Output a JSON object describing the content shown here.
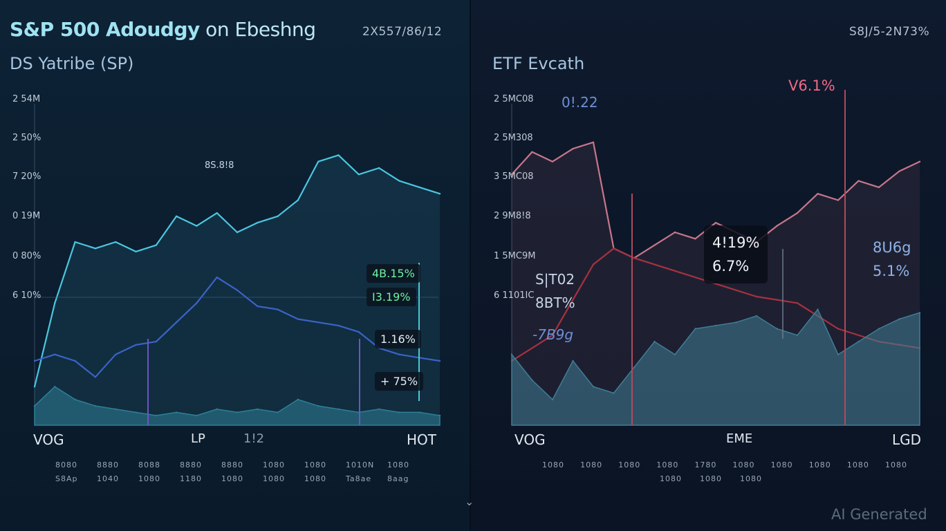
{
  "header": {
    "left_title": "S&P 500 Adoudgy on Ebeshng",
    "left_title_strong": "S&P 500 Adoudgy",
    "left_title_rest": " on Ebeshng",
    "left_corner": "2X557/86/12",
    "left_subtitle": "DS Yatribe (SP)",
    "right_corner": "S8J/5-2N73%",
    "right_subtitle": "ETF Evcath"
  },
  "watermark": "AI Generated",
  "chart_data": [
    {
      "type": "line",
      "panel": "left",
      "title": "S&P 500 Adoudgy on Ebeshng",
      "subtitle": "DS Yatribe (SP)",
      "y_tick_labels": [
        "2 54M",
        "2 50%",
        "7 20%",
        "0 19M",
        "0 80%",
        "6 10%"
      ],
      "x_labels": {
        "left": "VOG",
        "center": "LP",
        "center2": "1!2",
        "right": "HOT"
      },
      "x_small_rows": [
        [
          "8080",
          "8880",
          "8088",
          "8880",
          "8880",
          "1080",
          "1080",
          "1010N",
          "1080"
        ],
        [
          "S8Ap",
          "1040",
          "1080",
          "1180",
          "1080",
          "1080",
          "1080",
          "Ta8ae",
          "8aag"
        ]
      ],
      "grid": false,
      "series": [
        {
          "color": "#4cc6e0",
          "x": [
            0,
            5,
            10,
            15,
            20,
            25,
            30,
            35,
            40,
            45,
            50,
            55,
            60,
            65,
            70,
            75,
            80,
            85,
            90,
            95,
            100
          ],
          "values": [
            0.12,
            0.38,
            0.57,
            0.55,
            0.57,
            0.54,
            0.56,
            0.65,
            0.62,
            0.66,
            0.6,
            0.63,
            0.65,
            0.7,
            0.82,
            0.84,
            0.78,
            0.8,
            0.76,
            0.74,
            0.72
          ]
        },
        {
          "color": "#3b63c8",
          "x": [
            0,
            5,
            10,
            15,
            20,
            25,
            30,
            35,
            40,
            45,
            50,
            55,
            60,
            65,
            70,
            75,
            80,
            85,
            90,
            95,
            100
          ],
          "values": [
            0.2,
            0.22,
            0.2,
            0.15,
            0.22,
            0.25,
            0.26,
            0.32,
            0.38,
            0.46,
            0.42,
            0.37,
            0.36,
            0.33,
            0.32,
            0.31,
            0.29,
            0.24,
            0.22,
            0.21,
            0.2
          ]
        },
        {
          "color": "#2f7f97",
          "type": "area",
          "x": [
            0,
            5,
            10,
            15,
            20,
            25,
            30,
            35,
            40,
            45,
            50,
            55,
            60,
            65,
            70,
            75,
            80,
            85,
            90,
            95,
            100
          ],
          "values": [
            0.06,
            0.12,
            0.08,
            0.06,
            0.05,
            0.04,
            0.03,
            0.04,
            0.03,
            0.05,
            0.04,
            0.05,
            0.04,
            0.08,
            0.06,
            0.05,
            0.04,
            0.05,
            0.04,
            0.04,
            0.03
          ]
        }
      ],
      "annotations": [
        {
          "text": "4B.15%",
          "color": "#6ff2a0"
        },
        {
          "text": "I3.19%",
          "color": "#6ff2a0"
        },
        {
          "text": "1.16%",
          "color": "#e6edf4"
        },
        {
          "text": "+ 75%",
          "color": "#e6edf4"
        },
        {
          "text": "8S.8!8",
          "color": "#c9d6e6"
        }
      ]
    },
    {
      "type": "line",
      "panel": "right",
      "title": "ETF Evcath",
      "y_tick_labels": [
        "2 5MC08",
        "2 5M308",
        "3 5MC08",
        "2 9M8!8",
        "1 5MC9M",
        "6 1101IC"
      ],
      "x_labels": {
        "left": "VOG",
        "center": "EME",
        "right": "LGD"
      },
      "x_small_rows": [
        [
          "1080",
          "1080",
          "1080",
          "1080",
          "1780",
          "1080",
          "1080",
          "1080",
          "1080",
          "1080"
        ],
        [
          "1080",
          "1080",
          "1080"
        ]
      ],
      "grid": false,
      "series": [
        {
          "color": "#c9768a",
          "x": [
            0,
            5,
            10,
            15,
            20,
            25,
            30,
            35,
            40,
            45,
            50,
            55,
            60,
            65,
            70,
            75,
            80,
            85,
            90,
            95,
            100
          ],
          "values": [
            0.78,
            0.85,
            0.82,
            0.86,
            0.88,
            0.55,
            0.52,
            0.56,
            0.6,
            0.58,
            0.63,
            0.6,
            0.57,
            0.62,
            0.66,
            0.72,
            0.7,
            0.76,
            0.74,
            0.79,
            0.82
          ]
        },
        {
          "color": "#a8323f",
          "x": [
            0,
            10,
            20,
            25,
            30,
            40,
            50,
            60,
            70,
            80,
            90,
            100
          ],
          "values": [
            0.2,
            0.28,
            0.5,
            0.55,
            0.52,
            0.48,
            0.44,
            0.4,
            0.38,
            0.3,
            0.26,
            0.24
          ]
        },
        {
          "color": "#3f7e95",
          "type": "area",
          "x": [
            0,
            5,
            10,
            15,
            20,
            25,
            30,
            35,
            40,
            45,
            50,
            55,
            60,
            65,
            70,
            75,
            80,
            85,
            90,
            95,
            100
          ],
          "values": [
            0.22,
            0.14,
            0.08,
            0.2,
            0.12,
            0.1,
            0.18,
            0.26,
            0.22,
            0.3,
            0.31,
            0.32,
            0.34,
            0.3,
            0.28,
            0.36,
            0.22,
            0.26,
            0.3,
            0.33,
            0.35
          ]
        }
      ],
      "annotations": [
        {
          "text": "V6.1%",
          "color": "#f06a86"
        },
        {
          "text": "0!.22",
          "color": "#6f8fd6"
        },
        {
          "text": "4!19%",
          "color": "#f0f3f7"
        },
        {
          "text": "6.7%",
          "color": "#f0f3f7"
        },
        {
          "text": "8U6g",
          "color": "#8fb2e6"
        },
        {
          "text": "5.1%",
          "color": "#8fb2e6"
        },
        {
          "text": "S|T02",
          "color": "#c9d6e6"
        },
        {
          "text": "8BT%",
          "color": "#c9d6e6"
        },
        {
          "text": "-7B9g",
          "color": "#6f8fd6"
        }
      ]
    }
  ]
}
